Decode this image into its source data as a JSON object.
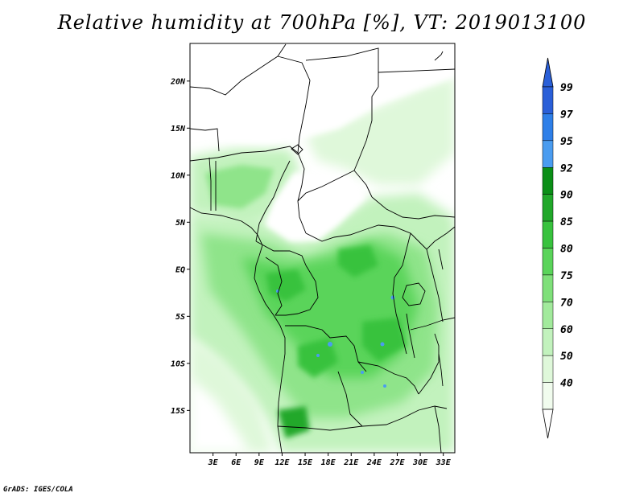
{
  "title": "Relative humidity at 700hPa [%], VT: 2019013100",
  "credit": "GrADS: IGES/COLA",
  "map": {
    "lon_range": [
      0,
      34.5
    ],
    "lat_range": [
      -19.5,
      24
    ],
    "lat_ticks": [
      {
        "value": 20,
        "label": "20N"
      },
      {
        "value": 15,
        "label": "15N"
      },
      {
        "value": 10,
        "label": "10N"
      },
      {
        "value": 5,
        "label": "5N"
      },
      {
        "value": 0,
        "label": "EQ"
      },
      {
        "value": -5,
        "label": "5S"
      },
      {
        "value": -10,
        "label": "10S"
      },
      {
        "value": -15,
        "label": "15S"
      }
    ],
    "lon_ticks": [
      {
        "value": 3,
        "label": "3E"
      },
      {
        "value": 6,
        "label": "6E"
      },
      {
        "value": 9,
        "label": "9E"
      },
      {
        "value": 12,
        "label": "12E"
      },
      {
        "value": 15,
        "label": "15E"
      },
      {
        "value": 18,
        "label": "18E"
      },
      {
        "value": 21,
        "label": "21E"
      },
      {
        "value": 24,
        "label": "24E"
      },
      {
        "value": 27,
        "label": "27E"
      },
      {
        "value": 30,
        "label": "30E"
      },
      {
        "value": 33,
        "label": "33E"
      }
    ]
  },
  "colorbar": {
    "levels": [
      {
        "label": "99",
        "color": "#2a5fd8"
      },
      {
        "label": "97",
        "color": "#2e7fe8"
      },
      {
        "label": "95",
        "color": "#4a9cf0"
      },
      {
        "label": "92",
        "color": "#0b8f17"
      },
      {
        "label": "90",
        "color": "#21a82a"
      },
      {
        "label": "85",
        "color": "#38c23e"
      },
      {
        "label": "80",
        "color": "#5ad45a"
      },
      {
        "label": "75",
        "color": "#7fe07a"
      },
      {
        "label": "70",
        "color": "#a2ea9c"
      },
      {
        "label": "60",
        "color": "#c2f2bd"
      },
      {
        "label": "50",
        "color": "#dff8da"
      },
      {
        "label": "40",
        "color": "#f1fcee"
      }
    ],
    "top_color": "#2a5fd8",
    "bottom_color": "#ffffff"
  }
}
